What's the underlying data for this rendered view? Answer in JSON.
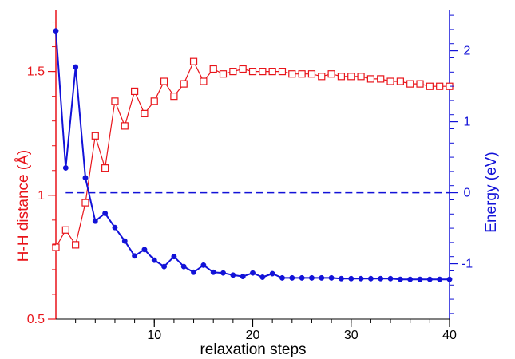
{
  "chart_data": {
    "type": "line",
    "xlabel": "relaxation steps",
    "xlim": [
      0,
      40
    ],
    "x_ticks": [
      10,
      20,
      30,
      40
    ],
    "y_left": {
      "label": "H-H distance (Å)",
      "lim": [
        0.5,
        1.75
      ],
      "ticks": [
        0.5,
        1,
        1.5
      ],
      "tick_labels": [
        "0.5",
        "1",
        "1.5"
      ],
      "color": "#e8141a"
    },
    "y_right": {
      "label": "Energy (eV)",
      "lim": [
        -1.78,
        2.58
      ],
      "ticks": [
        -1,
        0,
        1,
        2
      ],
      "tick_labels": [
        "-1",
        "0",
        "1",
        "2"
      ],
      "color": "#1212d8"
    },
    "series": [
      {
        "axis": "left",
        "color": "#e8141a",
        "marker": "open-square",
        "x": [
          0,
          1,
          2,
          3,
          4,
          5,
          6,
          7,
          8,
          9,
          10,
          11,
          12,
          13,
          14,
          15,
          16,
          17,
          18,
          19,
          20,
          21,
          22,
          23,
          24,
          25,
          26,
          27,
          28,
          29,
          30,
          31,
          32,
          33,
          34,
          35,
          36,
          37,
          38,
          39,
          40
        ],
        "values": [
          0.79,
          0.86,
          0.8,
          0.97,
          1.24,
          1.11,
          1.38,
          1.28,
          1.42,
          1.33,
          1.38,
          1.46,
          1.4,
          1.45,
          1.54,
          1.46,
          1.51,
          1.49,
          1.5,
          1.51,
          1.5,
          1.5,
          1.5,
          1.5,
          1.49,
          1.49,
          1.49,
          1.48,
          1.49,
          1.48,
          1.48,
          1.48,
          1.47,
          1.47,
          1.46,
          1.46,
          1.45,
          1.45,
          1.44,
          1.44,
          1.44
        ]
      },
      {
        "axis": "right",
        "color": "#1212d8",
        "marker": "filled-circle",
        "x": [
          0,
          1,
          2,
          3,
          4,
          5,
          6,
          7,
          8,
          9,
          10,
          11,
          12,
          13,
          14,
          15,
          16,
          17,
          18,
          19,
          20,
          21,
          22,
          23,
          24,
          25,
          26,
          27,
          28,
          29,
          30,
          31,
          32,
          33,
          34,
          35,
          36,
          37,
          38,
          39,
          40
        ],
        "values": [
          2.28,
          0.35,
          1.77,
          0.21,
          -0.4,
          -0.29,
          -0.49,
          -0.68,
          -0.89,
          -0.8,
          -0.95,
          -1.04,
          -0.9,
          -1.04,
          -1.12,
          -1.02,
          -1.12,
          -1.13,
          -1.16,
          -1.18,
          -1.13,
          -1.19,
          -1.14,
          -1.2,
          -1.2,
          -1.2,
          -1.2,
          -1.2,
          -1.2,
          -1.21,
          -1.21,
          -1.21,
          -1.21,
          -1.21,
          -1.21,
          -1.22,
          -1.22,
          -1.22,
          -1.22,
          -1.22,
          -1.22
        ]
      }
    ],
    "reference_line": {
      "axis": "right",
      "y": 0,
      "x_range": [
        1,
        40
      ],
      "style": "dashed",
      "color": "#1212d8"
    }
  }
}
